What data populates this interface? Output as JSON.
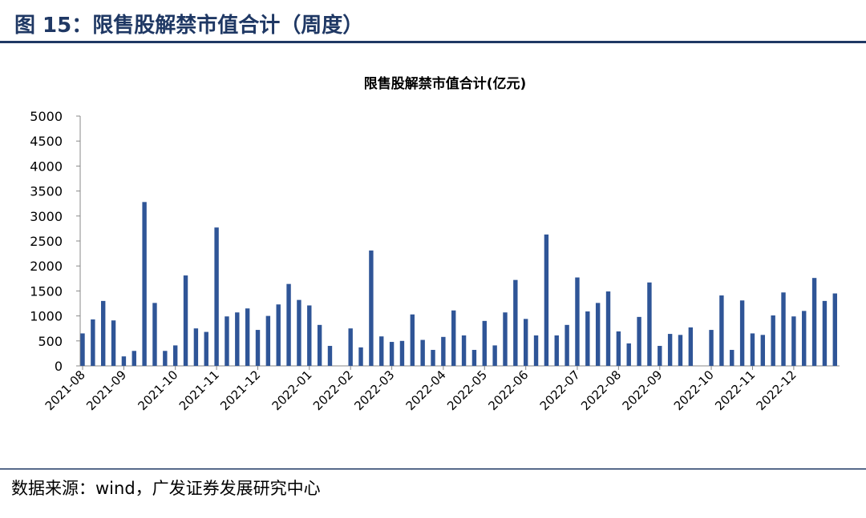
{
  "figure_title": "图 15：限售股解禁市值合计（周度）",
  "source": "数据来源：wind，广发证券发展研究中心",
  "chart_data": {
    "type": "bar",
    "title": "限售股解禁市值合计(亿元)",
    "categories": [
      "2021-08",
      null,
      null,
      null,
      "2021-09",
      null,
      null,
      null,
      null,
      "2021-10",
      null,
      null,
      null,
      "2021-11",
      null,
      null,
      null,
      "2021-12",
      null,
      null,
      null,
      null,
      "2022-01",
      null,
      null,
      null,
      "2022-02",
      null,
      null,
      null,
      "2022-03",
      null,
      null,
      null,
      null,
      "2022-04",
      null,
      null,
      null,
      "2022-05",
      null,
      null,
      null,
      "2022-06",
      null,
      null,
      null,
      null,
      "2022-07",
      null,
      null,
      null,
      "2022-08",
      null,
      null,
      null,
      "2022-09",
      null,
      null,
      null,
      null,
      "2022-10",
      null,
      null,
      null,
      "2022-11",
      null,
      null,
      null,
      "2022-12",
      null,
      null,
      null,
      null
    ],
    "values": [
      650,
      930,
      1300,
      910,
      190,
      300,
      3280,
      1260,
      300,
      410,
      1810,
      750,
      680,
      2770,
      990,
      1070,
      1150,
      720,
      1000,
      1230,
      1640,
      1320,
      1210,
      820,
      400,
      0,
      750,
      370,
      2310,
      590,
      480,
      500,
      1030,
      520,
      320,
      580,
      1110,
      610,
      320,
      900,
      410,
      1070,
      1720,
      940,
      610,
      2630,
      610,
      820,
      1770,
      1090,
      1260,
      1490,
      690,
      450,
      980,
      1670,
      400,
      640,
      620,
      770,
      0,
      720,
      1410,
      320,
      1310,
      650,
      620,
      1010,
      1470,
      990,
      1100,
      1760,
      1300,
      1450
    ],
    "color": "#2f5597",
    "ylim": [
      0,
      5000
    ],
    "yticks": [
      0,
      500,
      1000,
      1500,
      2000,
      2500,
      3000,
      3500,
      4000,
      4500,
      5000
    ]
  }
}
